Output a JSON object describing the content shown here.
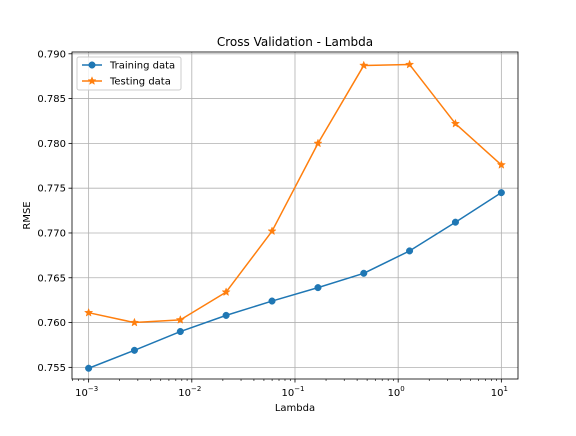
{
  "chart_data": {
    "type": "line",
    "title": "Cross Validation - Lambda",
    "xlabel": "Lambda",
    "ylabel": "RMSE",
    "xscale": "log",
    "grid": true,
    "legend_position": "top-left",
    "xlim": [
      0.00069,
      14.5
    ],
    "ylim": [
      0.7537,
      0.7902
    ],
    "xticks": [
      {
        "value": 0.001,
        "base": "10",
        "exp": "−3"
      },
      {
        "value": 0.01,
        "base": "10",
        "exp": "−2"
      },
      {
        "value": 0.1,
        "base": "10",
        "exp": "−1"
      },
      {
        "value": 1,
        "base": "10",
        "exp": "0"
      },
      {
        "value": 10,
        "base": "10",
        "exp": "1"
      }
    ],
    "yticks": [
      {
        "value": 0.755,
        "label": "0.755"
      },
      {
        "value": 0.76,
        "label": "0.760"
      },
      {
        "value": 0.765,
        "label": "0.765"
      },
      {
        "value": 0.77,
        "label": "0.770"
      },
      {
        "value": 0.775,
        "label": "0.775"
      },
      {
        "value": 0.78,
        "label": "0.780"
      },
      {
        "value": 0.785,
        "label": "0.785"
      },
      {
        "value": 0.79,
        "label": "0.790"
      }
    ],
    "x": [
      0.001,
      0.00278,
      0.00774,
      0.0215,
      0.0599,
      0.167,
      0.464,
      1.29,
      3.59,
      10
    ],
    "series": [
      {
        "name": "Training data",
        "color": "#1f77b4",
        "marker": "circle",
        "values": [
          0.7549,
          0.7569,
          0.759,
          0.7608,
          0.7624,
          0.7639,
          0.7655,
          0.768,
          0.7712,
          0.7745
        ]
      },
      {
        "name": "Testing data",
        "color": "#ff7f0e",
        "marker": "star",
        "values": [
          0.7611,
          0.76,
          0.7603,
          0.7634,
          0.7702,
          0.78,
          0.7887,
          0.7888,
          0.7822,
          0.7776
        ]
      }
    ]
  }
}
